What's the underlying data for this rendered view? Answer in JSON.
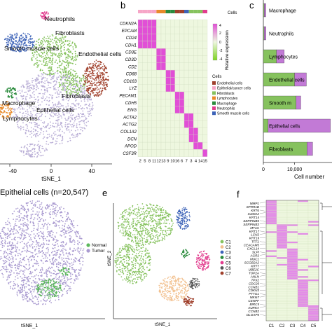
{
  "panels": {
    "b": "b",
    "c": "c",
    "e": "e",
    "f": "f"
  },
  "colors": {
    "epithelial": "#b9aed6",
    "fibroblasts": "#86c25e",
    "endothelial": "#a0402c",
    "neutrophils": "#e23c8e",
    "smooth": "#3d63b8",
    "macrophage": "#2a8b3c",
    "lymphocytes": "#e88a2a",
    "heat_high": "#e14fd6",
    "heat_low": "#eef7df",
    "normal": "#5cb85c",
    "tumor": "#a99ad0"
  },
  "chart_data": [
    {
      "type": "scatter",
      "panel": "a",
      "xlabel": "tSNE_1",
      "x_ticks": [
        "-40",
        "0",
        "40"
      ],
      "clusters": [
        {
          "name": "Neutrophils",
          "color": "#e23c8e"
        },
        {
          "name": "Fibroblasts",
          "color": "#86c25e"
        },
        {
          "name": "Smooth muscle cells",
          "color": "#3d63b8"
        },
        {
          "name": "Endothelial cells",
          "color": "#a0402c"
        },
        {
          "name": "Macrophage",
          "color": "#2a8b3c"
        },
        {
          "name": "Epithelial cells",
          "color": "#b9aed6"
        },
        {
          "name": "Lymphocytes",
          "color": "#e88a2a"
        },
        {
          "name": "Fibroblasts",
          "color": "#86c25e"
        }
      ]
    },
    {
      "type": "heatmap",
      "panel": "b",
      "rows": [
        "CDKN2A",
        "EPCAM",
        "CD24",
        "CDH1",
        "CD3E",
        "CD3D",
        "CD2",
        "CD68",
        "CD163",
        "LYZ",
        "PECAM1",
        "CDH5",
        "ENG",
        "ACTA2",
        "ACTG2",
        "COL1A2",
        "DCN",
        "APOD",
        "CSF3R"
      ],
      "columns": [
        "2",
        "5",
        "8",
        "11",
        "12",
        "13",
        "9",
        "10",
        "16",
        "6",
        "7",
        "3",
        "4",
        "14",
        "15"
      ],
      "colorbar_label": "Relative expression",
      "colorbar_ticks": [
        "4",
        "2",
        "0",
        "-2",
        "-4"
      ],
      "top_legend_title": "Cells",
      "legend_title": "Cells",
      "legend": [
        {
          "name": "Endothelial cells",
          "color": "#a0402c"
        },
        {
          "name": "Epithelial/cancer cells",
          "color": "#f6a6c7"
        },
        {
          "name": "Fibroblasts",
          "color": "#86c25e"
        },
        {
          "name": "Lymphocytes",
          "color": "#e88a2a"
        },
        {
          "name": "Macrophage",
          "color": "#2a8b3c"
        },
        {
          "name": "Neutrophils",
          "color": "#e23c8e"
        },
        {
          "name": "Smooth muscle cells",
          "color": "#3d63b8"
        }
      ],
      "high_cells": [
        [
          0,
          0
        ],
        [
          0,
          1
        ],
        [
          0,
          2
        ],
        [
          0,
          3
        ],
        [
          1,
          0
        ],
        [
          1,
          1
        ],
        [
          1,
          2
        ],
        [
          1,
          3
        ],
        [
          2,
          0
        ],
        [
          2,
          1
        ],
        [
          2,
          2
        ],
        [
          2,
          3
        ],
        [
          3,
          0
        ],
        [
          3,
          1
        ],
        [
          3,
          2
        ],
        [
          3,
          3
        ],
        [
          4,
          4
        ],
        [
          4,
          5
        ],
        [
          5,
          4
        ],
        [
          5,
          5
        ],
        [
          6,
          4
        ],
        [
          6,
          5
        ],
        [
          7,
          6
        ],
        [
          7,
          7
        ],
        [
          8,
          6
        ],
        [
          8,
          7
        ],
        [
          9,
          6
        ],
        [
          9,
          7
        ],
        [
          10,
          8
        ],
        [
          10,
          9
        ],
        [
          11,
          8
        ],
        [
          11,
          9
        ],
        [
          12,
          8
        ],
        [
          12,
          9
        ],
        [
          13,
          10
        ],
        [
          13,
          11
        ],
        [
          14,
          10
        ],
        [
          14,
          11
        ],
        [
          15,
          11
        ],
        [
          15,
          12
        ],
        [
          16,
          11
        ],
        [
          16,
          12
        ],
        [
          17,
          12
        ],
        [
          17,
          13
        ],
        [
          18,
          14
        ]
      ]
    },
    {
      "type": "bar",
      "panel": "c",
      "orientation": "horizontal",
      "categories": [
        "Macrophage",
        "Neutrophils",
        "Lymphocytes",
        "Endothelial cells",
        "Smooth m",
        "Epithelial cells",
        "Fibroblasts"
      ],
      "series": [
        {
          "color": "#86c25e",
          "values": [
            300,
            250,
            4200,
            10000,
            10500,
            1500,
            14000
          ]
        },
        {
          "color": "#c27ad6",
          "values": [
            500,
            600,
            2500,
            3800,
            1500,
            20000,
            1800
          ]
        }
      ],
      "x_ticks": [
        "0",
        "10,000"
      ],
      "xlabel": "Cell number"
    },
    {
      "type": "scatter",
      "panel": "d",
      "title": "Epithelial cells (n=20,547)",
      "xlabel": "tSNE_1",
      "legend": [
        {
          "name": "Normal",
          "color": "#5cb85c"
        },
        {
          "name": "Tumor",
          "color": "#a99ad0"
        }
      ]
    },
    {
      "type": "scatter",
      "panel": "e",
      "xlabel": "tSNE_1",
      "ylabel": "tSNE_2",
      "legend": [
        {
          "name": "C1",
          "color": "#86c25e"
        },
        {
          "name": "C2",
          "color": "#f2c08e"
        },
        {
          "name": "C3",
          "color": "#3d63b8"
        },
        {
          "name": "C4",
          "color": "#2a8b3c"
        },
        {
          "name": "C5",
          "color": "#e23c8e"
        },
        {
          "name": "C6",
          "color": "#555555"
        },
        {
          "name": "C7",
          "color": "#a0402c"
        }
      ]
    },
    {
      "type": "heatmap",
      "panel": "f",
      "columns": [
        "C1",
        "C2",
        "C3",
        "C4",
        "C5"
      ],
      "genes": [
        "MMP1",
        "SPRR1B",
        "KRT6",
        "S100A2",
        "KRT14",
        "SERPINB5",
        "SERPINB3",
        "MT1G",
        "KRT17",
        "LCN2",
        "KRT19",
        "TFF1",
        "CEACAM5",
        "CXCL14",
        "SLPI",
        "AGR2",
        "MUC1",
        "SCGB2A2",
        "KRT7",
        "UBE2C",
        "TOP2A",
        "ANLN",
        "TPX2",
        "CDC20",
        "CCNB1",
        "CDKN3",
        "PTTG1",
        "MKI67",
        "CENPF",
        "BIRC5",
        "AURKA",
        "CCNB2",
        "DLGAP5"
      ],
      "bands": [
        [
          0,
          0.0,
          0.2
        ],
        [
          1,
          0.2,
          0.4
        ],
        [
          2,
          0.4,
          0.65
        ],
        [
          3,
          0.65,
          0.88
        ],
        [
          4,
          0.88,
          1.0
        ]
      ]
    }
  ]
}
